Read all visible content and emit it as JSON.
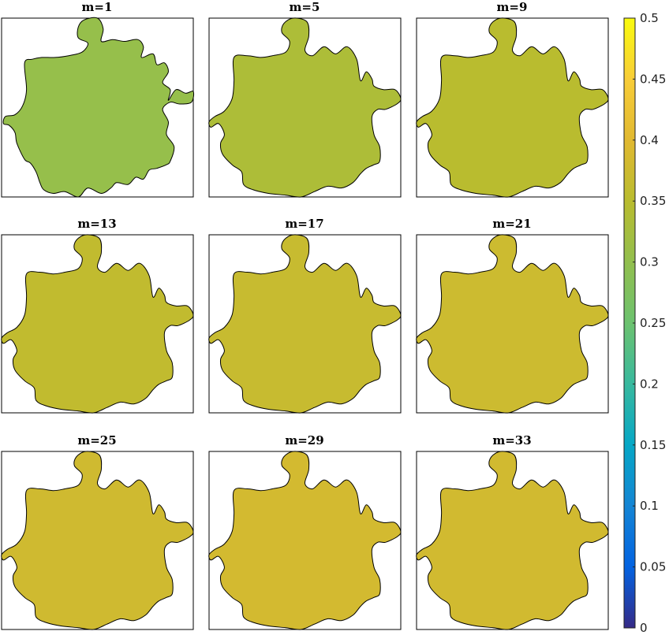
{
  "figure": {
    "panels": [
      {
        "title": "m=1",
        "value": 0.305,
        "shape": "early"
      },
      {
        "title": "m=5",
        "value": 0.335,
        "shape": "smooth"
      },
      {
        "title": "m=9",
        "value": 0.35,
        "shape": "smooth"
      },
      {
        "title": "m=13",
        "value": 0.36,
        "shape": "smooth"
      },
      {
        "title": "m=17",
        "value": 0.368,
        "shape": "smooth"
      },
      {
        "title": "m=21",
        "value": 0.374,
        "shape": "smooth"
      },
      {
        "title": "m=25",
        "value": 0.378,
        "shape": "smooth"
      },
      {
        "title": "m=29",
        "value": 0.382,
        "shape": "smooth"
      },
      {
        "title": "m=33",
        "value": 0.38,
        "shape": "smooth"
      }
    ],
    "colorbar": {
      "min": 0,
      "max": 0.5,
      "ticks": [
        "0",
        "0.05",
        "0.1",
        "0.15",
        "0.2",
        "0.25",
        "0.3",
        "0.35",
        "0.4",
        "0.45",
        "0.5"
      ],
      "colormap": "parula"
    }
  }
}
